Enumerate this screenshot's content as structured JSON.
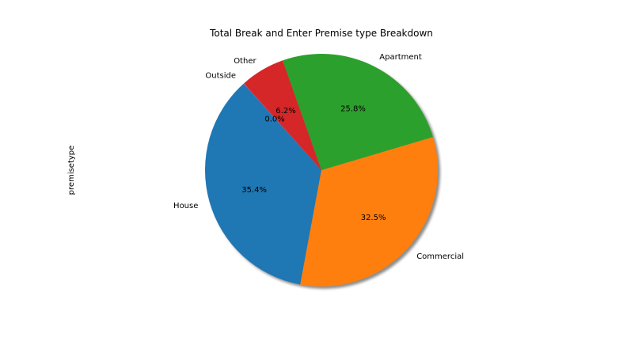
{
  "chart_data": {
    "type": "pie",
    "title": "Total Break and Enter Premise type Breakdown",
    "ylabel": "premisetype",
    "xlabel": "",
    "shadow": true,
    "legend": "none",
    "categories": [
      "House",
      "Commercial",
      "Apartment",
      "Other",
      "Outside"
    ],
    "values": [
      35.4,
      32.5,
      25.8,
      6.2,
      0.05
    ],
    "value_labels": [
      "35.4%",
      "32.5%",
      "25.8%",
      "6.2%",
      "0.0%"
    ],
    "colors": [
      "#1f77b4",
      "#ff7f0e",
      "#2ca02c",
      "#d62728",
      "#9467bd"
    ]
  }
}
